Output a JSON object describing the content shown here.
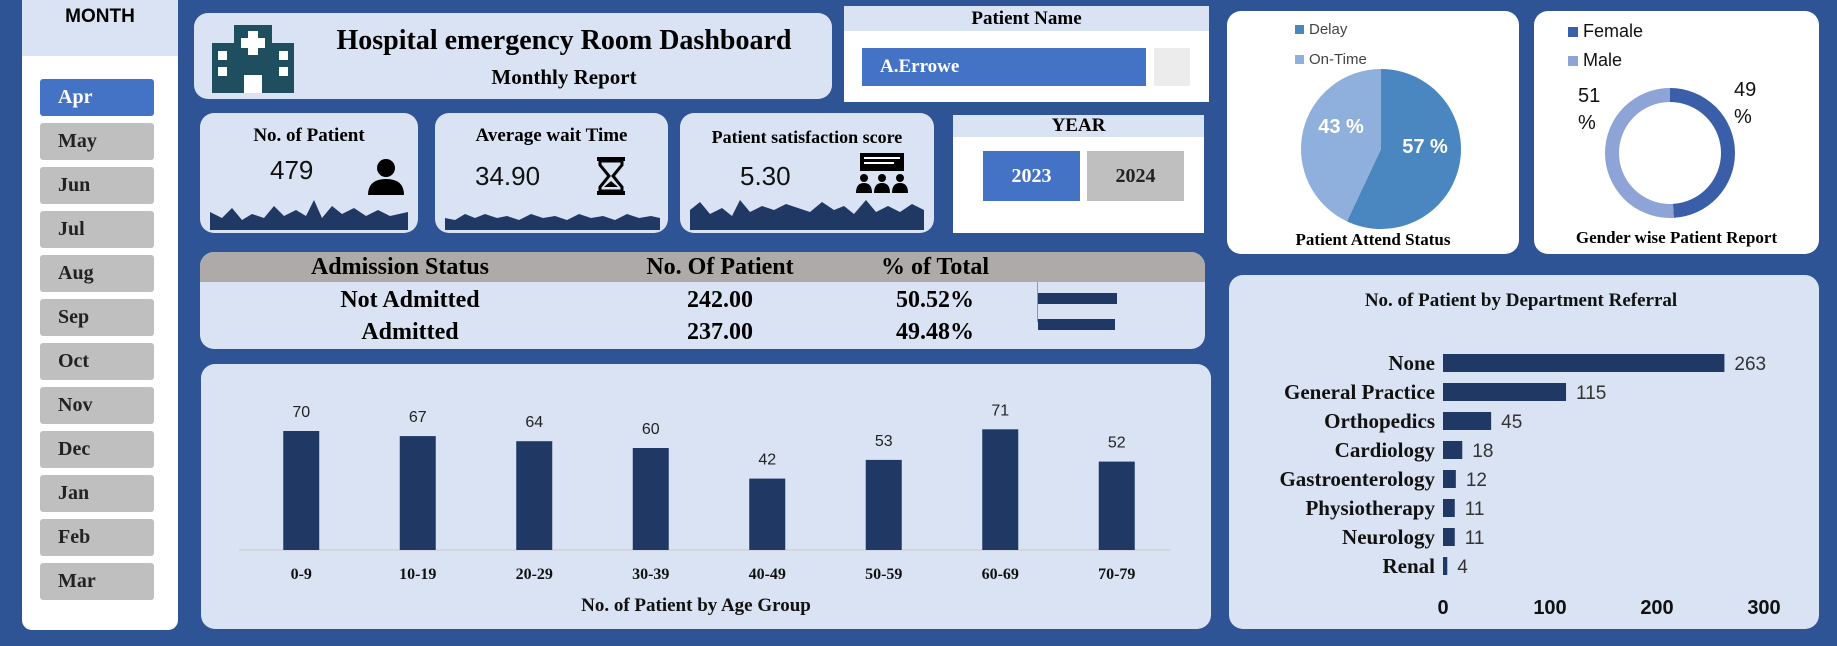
{
  "months": {
    "header": "MONTH",
    "items": [
      "Apr",
      "May",
      "Jun",
      "Jul",
      "Aug",
      "Sep",
      "Oct",
      "Nov",
      "Dec",
      "Jan",
      "Feb",
      "Mar"
    ],
    "selected": "Apr"
  },
  "title": {
    "main": "Hospital emergency Room Dashboard",
    "sub": "Monthly Report"
  },
  "patient_name": {
    "header": "Patient Name",
    "selected": "A.Errowe"
  },
  "kpis": [
    {
      "label": "No. of Patient",
      "value": "479",
      "icon": "person-icon"
    },
    {
      "label": "Average wait Time",
      "value": "34.90",
      "icon": "hourglass-icon"
    },
    {
      "label": "Patient satisfaction score",
      "value": "5.30",
      "icon": "meeting-icon"
    }
  ],
  "year": {
    "header": "YEAR",
    "options": [
      "2023",
      "2024"
    ],
    "selected": "2023"
  },
  "attend_status": {
    "title": "Patient Attend Status",
    "legend": [
      {
        "label": "Delay",
        "color": "#4a86c0"
      },
      {
        "label": "On-Time",
        "color": "#8fb0dc"
      }
    ],
    "labels": [
      "57 %",
      "43 %"
    ]
  },
  "gender": {
    "title": "Gender wise Patient Report",
    "legend": [
      {
        "label": "Female",
        "color": "#3a5ea8"
      },
      {
        "label": "Male",
        "color": "#8ea3d6"
      }
    ],
    "labels": [
      "49 %",
      "51 %"
    ]
  },
  "admission": {
    "headers": [
      "Admission Status",
      "No. Of Patient",
      "% of Total"
    ],
    "rows": [
      [
        "Not Admitted",
        "242.00",
        "50.52%"
      ],
      [
        "Admitted",
        "237.00",
        "49.48%"
      ]
    ]
  },
  "chart_data": [
    {
      "type": "pie",
      "title": "Patient Attend Status",
      "categories": [
        "Delay",
        "On-Time"
      ],
      "values": [
        57,
        43
      ]
    },
    {
      "type": "pie",
      "title": "Gender wise Patient Report",
      "categories": [
        "Female",
        "Male"
      ],
      "values": [
        49,
        51
      ]
    },
    {
      "type": "bar",
      "title": "No. of Patient by Age Group",
      "categories": [
        "0-9",
        "10-19",
        "20-29",
        "30-39",
        "40-49",
        "50-59",
        "60-69",
        "70-79"
      ],
      "values": [
        70,
        67,
        64,
        60,
        42,
        53,
        71,
        52
      ],
      "color": "#1f3864"
    },
    {
      "type": "bar",
      "orientation": "horizontal",
      "title": "No. of Patient by Department Referral",
      "categories": [
        "None",
        "General Practice",
        "Orthopedics",
        "Cardiology",
        "Gastroenterology",
        "Physiotherapy",
        "Neurology",
        "Renal"
      ],
      "values": [
        263,
        115,
        45,
        18,
        12,
        11,
        11,
        4
      ],
      "xticks": [
        "0",
        "100",
        "200",
        "300"
      ],
      "xlim": [
        0,
        300
      ],
      "color": "#1f3864"
    }
  ]
}
